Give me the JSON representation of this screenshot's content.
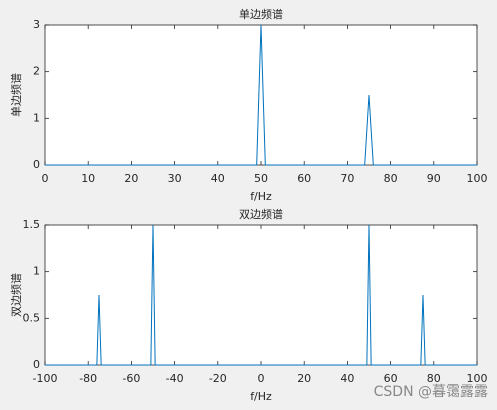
{
  "chart_data": [
    {
      "type": "line",
      "title": "单边频谱",
      "xlabel": "f/Hz",
      "ylabel": "单边频谱",
      "color": "#0072bd",
      "x": [
        0,
        49,
        50,
        51,
        74,
        75,
        76,
        100
      ],
      "values": [
        0,
        0,
        3,
        0,
        0,
        1.5,
        0,
        0
      ],
      "xlim": [
        0,
        100
      ],
      "xticks": [
        0,
        10,
        20,
        30,
        40,
        50,
        60,
        70,
        80,
        90,
        100
      ],
      "ylim": [
        0,
        3
      ],
      "yticks": [
        0,
        1,
        2,
        3
      ]
    },
    {
      "type": "line",
      "title": "双边频谱",
      "xlabel": "f/Hz",
      "ylabel": "双边频谱",
      "color": "#0072bd",
      "x": [
        -100,
        -76,
        -75,
        -74,
        -51,
        -50,
        -49,
        49,
        50,
        51,
        74,
        75,
        76,
        100
      ],
      "values": [
        0,
        0,
        0.75,
        0,
        0,
        1.5,
        0,
        0,
        1.5,
        0,
        0,
        0.75,
        0,
        0
      ],
      "xlim": [
        -100,
        100
      ],
      "xticks": [
        -100,
        -80,
        -60,
        -40,
        -20,
        0,
        20,
        40,
        60,
        80,
        100
      ],
      "ylim": [
        0,
        1.5
      ],
      "yticks": [
        0,
        0.5,
        1,
        1.5
      ]
    }
  ],
  "watermark": "CSDN @暮霭露露"
}
